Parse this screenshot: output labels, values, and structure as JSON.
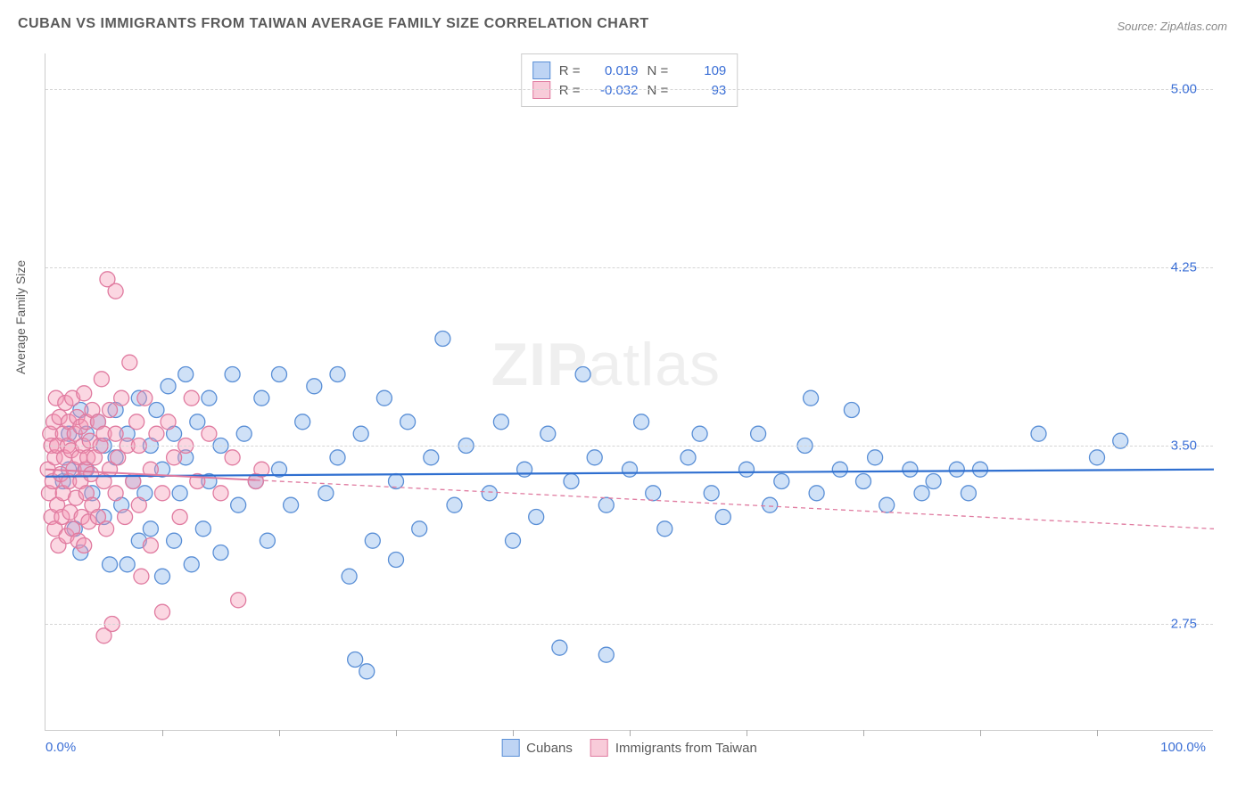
{
  "title": "CUBAN VS IMMIGRANTS FROM TAIWAN AVERAGE FAMILY SIZE CORRELATION CHART",
  "source": "Source: ZipAtlas.com",
  "ylabel": "Average Family Size",
  "watermark_bold": "ZIP",
  "watermark_light": "atlas",
  "chart": {
    "type": "scatter",
    "xlim": [
      0,
      100
    ],
    "ylim": [
      2.3,
      5.15
    ],
    "x_axis_labels": [
      {
        "pos": 0,
        "text": "0.0%"
      },
      {
        "pos": 100,
        "text": "100.0%"
      }
    ],
    "xtick_positions": [
      10,
      20,
      30,
      40,
      50,
      60,
      70,
      80,
      90
    ],
    "y_gridlines": [
      {
        "val": 5.0,
        "label": "5.00"
      },
      {
        "val": 4.25,
        "label": "4.25"
      },
      {
        "val": 3.5,
        "label": "3.50"
      },
      {
        "val": 2.75,
        "label": "2.75"
      }
    ],
    "background_color": "#ffffff",
    "grid_color": "#d5d5d5",
    "axis_color": "#cccccc",
    "tick_label_color": "#3b6fd6",
    "marker_radius": 8.5,
    "marker_stroke_width": 1.3,
    "series": [
      {
        "name": "Cubans",
        "fill": "rgba(130,175,235,0.38)",
        "stroke": "#5a8fd6",
        "R": "0.019",
        "N": "109",
        "trend": {
          "y_at_x0": 3.37,
          "y_at_x100": 3.4,
          "dash": "none",
          "width": 2.2,
          "color": "#2f6fd0"
        },
        "points": [
          [
            1.5,
            3.35
          ],
          [
            2,
            3.4
          ],
          [
            2,
            3.55
          ],
          [
            2.5,
            3.15
          ],
          [
            3,
            3.65
          ],
          [
            3,
            3.05
          ],
          [
            3.5,
            3.4
          ],
          [
            3.5,
            3.55
          ],
          [
            4,
            3.3
          ],
          [
            4.5,
            3.6
          ],
          [
            5,
            3.2
          ],
          [
            5,
            3.5
          ],
          [
            5.5,
            3.0
          ],
          [
            6,
            3.45
          ],
          [
            6,
            3.65
          ],
          [
            6.5,
            3.25
          ],
          [
            7,
            3.0
          ],
          [
            7,
            3.55
          ],
          [
            7.5,
            3.35
          ],
          [
            8,
            3.1
          ],
          [
            8,
            3.7
          ],
          [
            8.5,
            3.3
          ],
          [
            9,
            3.5
          ],
          [
            9,
            3.15
          ],
          [
            9.5,
            3.65
          ],
          [
            10,
            2.95
          ],
          [
            10,
            3.4
          ],
          [
            10.5,
            3.75
          ],
          [
            11,
            3.1
          ],
          [
            11,
            3.55
          ],
          [
            11.5,
            3.3
          ],
          [
            12,
            3.8
          ],
          [
            12,
            3.45
          ],
          [
            12.5,
            3.0
          ],
          [
            13,
            3.6
          ],
          [
            13.5,
            3.15
          ],
          [
            14,
            3.7
          ],
          [
            14,
            3.35
          ],
          [
            15,
            3.5
          ],
          [
            15,
            3.05
          ],
          [
            16,
            3.8
          ],
          [
            16.5,
            3.25
          ],
          [
            17,
            3.55
          ],
          [
            18,
            3.35
          ],
          [
            18.5,
            3.7
          ],
          [
            19,
            3.1
          ],
          [
            20,
            3.8
          ],
          [
            20,
            3.4
          ],
          [
            21,
            3.25
          ],
          [
            22,
            3.6
          ],
          [
            23,
            3.75
          ],
          [
            24,
            3.3
          ],
          [
            25,
            3.8
          ],
          [
            25,
            3.45
          ],
          [
            26,
            2.95
          ],
          [
            26.5,
            2.6
          ],
          [
            27,
            3.55
          ],
          [
            27.5,
            2.55
          ],
          [
            28,
            3.1
          ],
          [
            29,
            3.7
          ],
          [
            30,
            3.02
          ],
          [
            30,
            3.35
          ],
          [
            31,
            3.6
          ],
          [
            32,
            3.15
          ],
          [
            33,
            3.45
          ],
          [
            34,
            3.95
          ],
          [
            35,
            3.25
          ],
          [
            36,
            3.5
          ],
          [
            38,
            3.3
          ],
          [
            39,
            3.6
          ],
          [
            40,
            3.1
          ],
          [
            41,
            3.4
          ],
          [
            42,
            3.2
          ],
          [
            43,
            3.55
          ],
          [
            44,
            2.65
          ],
          [
            45,
            3.35
          ],
          [
            46,
            3.8
          ],
          [
            47,
            3.45
          ],
          [
            48,
            3.25
          ],
          [
            48,
            2.62
          ],
          [
            50,
            3.4
          ],
          [
            51,
            3.6
          ],
          [
            52,
            3.3
          ],
          [
            53,
            3.15
          ],
          [
            55,
            3.45
          ],
          [
            56,
            3.55
          ],
          [
            57,
            3.3
          ],
          [
            58,
            3.2
          ],
          [
            60,
            3.4
          ],
          [
            61,
            3.55
          ],
          [
            62,
            3.25
          ],
          [
            63,
            3.35
          ],
          [
            65,
            3.5
          ],
          [
            65.5,
            3.7
          ],
          [
            66,
            3.3
          ],
          [
            68,
            3.4
          ],
          [
            69,
            3.65
          ],
          [
            70,
            3.35
          ],
          [
            71,
            3.45
          ],
          [
            72,
            3.25
          ],
          [
            74,
            3.4
          ],
          [
            75,
            3.3
          ],
          [
            76,
            3.35
          ],
          [
            78,
            3.4
          ],
          [
            79,
            3.3
          ],
          [
            80,
            3.4
          ],
          [
            85,
            3.55
          ],
          [
            90,
            3.45
          ],
          [
            92,
            3.52
          ]
        ]
      },
      {
        "name": "Immigrants from Taiwan",
        "fill": "rgba(245,150,180,0.38)",
        "stroke": "#e07ba0",
        "R": "-0.032",
        "N": "93",
        "trend": {
          "y_at_x0": 3.4,
          "y_at_x100": 3.15,
          "dash": "5,4",
          "width": 1.3,
          "color": "#e07ba0"
        },
        "trend_solid_until": 18,
        "points": [
          [
            0.2,
            3.4
          ],
          [
            0.3,
            3.3
          ],
          [
            0.4,
            3.55
          ],
          [
            0.5,
            3.2
          ],
          [
            0.5,
            3.5
          ],
          [
            0.6,
            3.35
          ],
          [
            0.7,
            3.6
          ],
          [
            0.8,
            3.15
          ],
          [
            0.8,
            3.45
          ],
          [
            0.9,
            3.7
          ],
          [
            1,
            3.25
          ],
          [
            1,
            3.5
          ],
          [
            1.1,
            3.08
          ],
          [
            1.2,
            3.62
          ],
          [
            1.3,
            3.38
          ],
          [
            1.4,
            3.2
          ],
          [
            1.5,
            3.55
          ],
          [
            1.5,
            3.3
          ],
          [
            1.6,
            3.45
          ],
          [
            1.7,
            3.68
          ],
          [
            1.8,
            3.12
          ],
          [
            1.9,
            3.5
          ],
          [
            2,
            3.35
          ],
          [
            2,
            3.6
          ],
          [
            2.1,
            3.22
          ],
          [
            2.2,
            3.48
          ],
          [
            2.3,
            3.7
          ],
          [
            2.3,
            3.15
          ],
          [
            2.4,
            3.4
          ],
          [
            2.5,
            3.55
          ],
          [
            2.6,
            3.28
          ],
          [
            2.7,
            3.62
          ],
          [
            2.8,
            3.1
          ],
          [
            2.9,
            3.45
          ],
          [
            3,
            3.35
          ],
          [
            3,
            3.58
          ],
          [
            3.1,
            3.2
          ],
          [
            3.2,
            3.5
          ],
          [
            3.3,
            3.72
          ],
          [
            3.3,
            3.08
          ],
          [
            3.4,
            3.4
          ],
          [
            3.5,
            3.3
          ],
          [
            3.5,
            3.6
          ],
          [
            3.6,
            3.45
          ],
          [
            3.7,
            3.18
          ],
          [
            3.8,
            3.52
          ],
          [
            3.9,
            3.38
          ],
          [
            4,
            3.25
          ],
          [
            4,
            3.65
          ],
          [
            4.2,
            3.45
          ],
          [
            4.5,
            3.6
          ],
          [
            4.5,
            3.2
          ],
          [
            4.7,
            3.5
          ],
          [
            4.8,
            3.78
          ],
          [
            5,
            3.35
          ],
          [
            5,
            3.55
          ],
          [
            5,
            2.7
          ],
          [
            5.2,
            3.15
          ],
          [
            5.3,
            4.2
          ],
          [
            5.5,
            3.4
          ],
          [
            5.5,
            3.65
          ],
          [
            5.7,
            2.75
          ],
          [
            6,
            3.3
          ],
          [
            6,
            3.55
          ],
          [
            6,
            4.15
          ],
          [
            6.2,
            3.45
          ],
          [
            6.5,
            3.7
          ],
          [
            6.8,
            3.2
          ],
          [
            7,
            3.5
          ],
          [
            7.2,
            3.85
          ],
          [
            7.5,
            3.35
          ],
          [
            7.8,
            3.6
          ],
          [
            8,
            3.25
          ],
          [
            8,
            3.5
          ],
          [
            8.2,
            2.95
          ],
          [
            8.5,
            3.7
          ],
          [
            9,
            3.08
          ],
          [
            9,
            3.4
          ],
          [
            9.5,
            3.55
          ],
          [
            10,
            3.3
          ],
          [
            10,
            2.8
          ],
          [
            10.5,
            3.6
          ],
          [
            11,
            3.45
          ],
          [
            11.5,
            3.2
          ],
          [
            12,
            3.5
          ],
          [
            12.5,
            3.7
          ],
          [
            13,
            3.35
          ],
          [
            14,
            3.55
          ],
          [
            15,
            3.3
          ],
          [
            16,
            3.45
          ],
          [
            16.5,
            2.85
          ],
          [
            18,
            3.35
          ],
          [
            18.5,
            3.4
          ]
        ]
      }
    ]
  },
  "legend_bottom": [
    {
      "swatch": "sw-blue",
      "label": "Cubans"
    },
    {
      "swatch": "sw-pink",
      "label": "Immigrants from Taiwan"
    }
  ]
}
